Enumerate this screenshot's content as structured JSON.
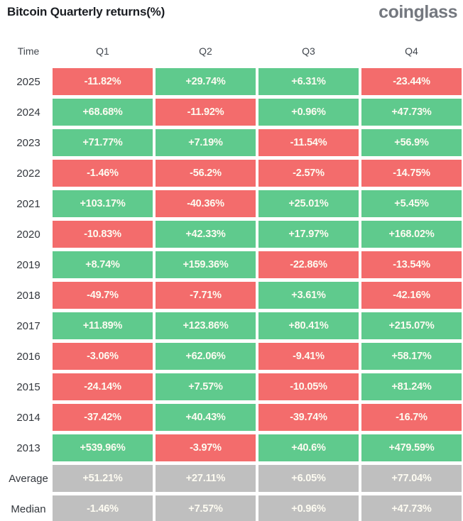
{
  "header": {
    "title": "Bitcoin Quarterly returns(%)",
    "logo": "coinglass"
  },
  "table": {
    "columns": [
      "Time",
      "Q1",
      "Q2",
      "Q3",
      "Q4"
    ],
    "rows": [
      {
        "label": "2025",
        "type": "year",
        "values": [
          "-11.82%",
          "+29.74%",
          "+6.31%",
          "-23.44%"
        ]
      },
      {
        "label": "2024",
        "type": "year",
        "values": [
          "+68.68%",
          "-11.92%",
          "+0.96%",
          "+47.73%"
        ]
      },
      {
        "label": "2023",
        "type": "year",
        "values": [
          "+71.77%",
          "+7.19%",
          "-11.54%",
          "+56.9%"
        ]
      },
      {
        "label": "2022",
        "type": "year",
        "values": [
          "-1.46%",
          "-56.2%",
          "-2.57%",
          "-14.75%"
        ]
      },
      {
        "label": "2021",
        "type": "year",
        "values": [
          "+103.17%",
          "-40.36%",
          "+25.01%",
          "+5.45%"
        ]
      },
      {
        "label": "2020",
        "type": "year",
        "values": [
          "-10.83%",
          "+42.33%",
          "+17.97%",
          "+168.02%"
        ]
      },
      {
        "label": "2019",
        "type": "year",
        "values": [
          "+8.74%",
          "+159.36%",
          "-22.86%",
          "-13.54%"
        ]
      },
      {
        "label": "2018",
        "type": "year",
        "values": [
          "-49.7%",
          "-7.71%",
          "+3.61%",
          "-42.16%"
        ]
      },
      {
        "label": "2017",
        "type": "year",
        "values": [
          "+11.89%",
          "+123.86%",
          "+80.41%",
          "+215.07%"
        ]
      },
      {
        "label": "2016",
        "type": "year",
        "values": [
          "-3.06%",
          "+62.06%",
          "-9.41%",
          "+58.17%"
        ]
      },
      {
        "label": "2015",
        "type": "year",
        "values": [
          "-24.14%",
          "+7.57%",
          "-10.05%",
          "+81.24%"
        ]
      },
      {
        "label": "2014",
        "type": "year",
        "values": [
          "-37.42%",
          "+40.43%",
          "-39.74%",
          "-16.7%"
        ]
      },
      {
        "label": "2013",
        "type": "year",
        "values": [
          "+539.96%",
          "-3.97%",
          "+40.6%",
          "+479.59%"
        ]
      },
      {
        "label": "Average",
        "type": "summary",
        "values": [
          "+51.21%",
          "+27.11%",
          "+6.05%",
          "+77.04%"
        ]
      },
      {
        "label": "Median",
        "type": "summary",
        "values": [
          "-1.46%",
          "+7.57%",
          "+0.96%",
          "+47.73%"
        ]
      }
    ]
  },
  "colors": {
    "positive": "#5fca8d",
    "negative": "#f36c6c",
    "neutral": "#bfbfbf",
    "cell_text": "#fdfbf1"
  },
  "chart_data": {
    "type": "table",
    "title": "Bitcoin Quarterly returns(%)",
    "columns": [
      "Q1",
      "Q2",
      "Q3",
      "Q4"
    ],
    "row_labels": [
      "2025",
      "2024",
      "2023",
      "2022",
      "2021",
      "2020",
      "2019",
      "2018",
      "2017",
      "2016",
      "2015",
      "2014",
      "2013",
      "Average",
      "Median"
    ],
    "values": [
      [
        -11.82,
        29.74,
        6.31,
        -23.44
      ],
      [
        68.68,
        -11.92,
        0.96,
        47.73
      ],
      [
        71.77,
        7.19,
        -11.54,
        56.9
      ],
      [
        -1.46,
        -56.2,
        -2.57,
        -14.75
      ],
      [
        103.17,
        -40.36,
        25.01,
        5.45
      ],
      [
        -10.83,
        42.33,
        17.97,
        168.02
      ],
      [
        8.74,
        159.36,
        -22.86,
        -13.54
      ],
      [
        -49.7,
        -7.71,
        3.61,
        -42.16
      ],
      [
        11.89,
        123.86,
        80.41,
        215.07
      ],
      [
        -3.06,
        62.06,
        -9.41,
        58.17
      ],
      [
        -24.14,
        7.57,
        -10.05,
        81.24
      ],
      [
        -37.42,
        40.43,
        -39.74,
        -16.7
      ],
      [
        539.96,
        -3.97,
        40.6,
        479.59
      ],
      [
        51.21,
        27.11,
        6.05,
        77.04
      ],
      [
        -1.46,
        7.57,
        0.96,
        47.73
      ]
    ],
    "unit": "%",
    "color_rule": "negative=red, positive=green, Average/Median rows=gray"
  }
}
